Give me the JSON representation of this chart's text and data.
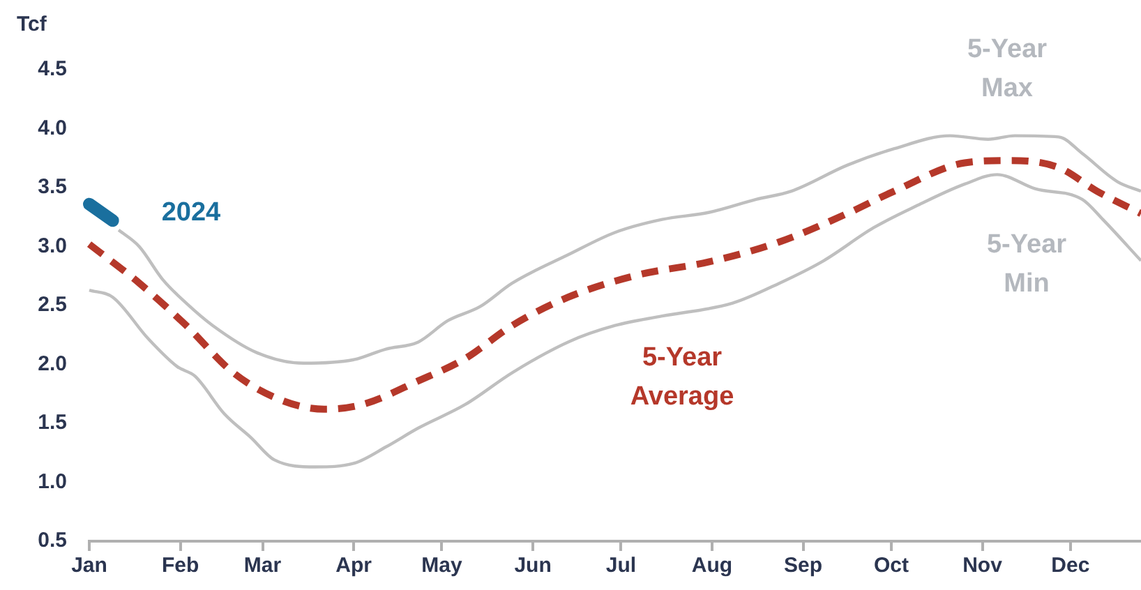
{
  "chart_data": {
    "type": "line",
    "ylabel": "Tcf",
    "xlim": [
      "--01-01",
      "--12-25"
    ],
    "ylim": [
      0.5,
      4.5
    ],
    "xticks": [
      {
        "value": "--01-01",
        "label": "Jan"
      },
      {
        "value": "--02-01",
        "label": "Feb"
      },
      {
        "value": "--03-01",
        "label": "Mar"
      },
      {
        "value": "--04-01",
        "label": "Apr"
      },
      {
        "value": "--05-01",
        "label": "May"
      },
      {
        "value": "--06-01",
        "label": "Jun"
      },
      {
        "value": "--07-01",
        "label": "Jul"
      },
      {
        "value": "--08-01",
        "label": "Aug"
      },
      {
        "value": "--09-01",
        "label": "Sep"
      },
      {
        "value": "--10-01",
        "label": "Oct"
      },
      {
        "value": "--11-01",
        "label": "Nov"
      },
      {
        "value": "--12-01",
        "label": "Dec"
      }
    ],
    "yticks": [
      0.5,
      {
        "value": 1,
        "label": "1.0"
      },
      1.5,
      {
        "value": 2,
        "label": "2.0"
      },
      2.5,
      {
        "value": 3,
        "label": "3.0"
      },
      3.5,
      {
        "value": 4,
        "label": "4.0"
      },
      4.5
    ],
    "legend": false,
    "marker": "none",
    "series": [
      {
        "name": "5-Year Max",
        "color": "#bfbfbf",
        "line_style": "solid",
        "x": [
          "--01-11",
          "--01-18",
          "--01-26",
          "--02-03",
          "--02-12",
          "--02-27",
          "--03-15",
          "--04-01",
          "--04-12",
          "--04-23",
          "--05-03",
          "--05-14",
          "--05-25",
          "--06-13",
          "--06-29",
          "--07-15",
          "--07-31",
          "--08-16",
          "--08-28",
          "--09-16",
          "--10-02",
          "--10-21",
          "--11-03",
          "--11-12",
          "--11-27",
          "--12-05",
          "--12-17",
          "--12-25"
        ],
        "values": [
          3.14,
          3.0,
          2.72,
          2.52,
          2.33,
          2.1,
          2.01,
          2.04,
          2.13,
          2.19,
          2.37,
          2.49,
          2.69,
          2.93,
          3.12,
          3.23,
          3.29,
          3.4,
          3.47,
          3.69,
          3.83,
          3.94,
          3.91,
          3.94,
          3.93,
          3.79,
          3.55,
          3.47
        ]
      },
      {
        "name": "5-Year Min",
        "color": "#bfbfbf",
        "line_style": "solid",
        "x": [
          "--01-01",
          "--01-09",
          "--01-21",
          "--01-31",
          "--02-06",
          "--02-16",
          "--02-25",
          "--03-05",
          "--03-19",
          "--04-01",
          "--04-12",
          "--04-23",
          "--05-09",
          "--05-25",
          "--06-13",
          "--06-29",
          "--07-15",
          "--08-08",
          "--08-24",
          "--09-08",
          "--09-25",
          "--10-10",
          "--10-26",
          "--11-06",
          "--11-19",
          "--12-05",
          "--12-12",
          "--12-25"
        ],
        "values": [
          2.63,
          2.57,
          2.22,
          1.98,
          1.9,
          1.58,
          1.38,
          1.19,
          1.13,
          1.16,
          1.3,
          1.46,
          1.66,
          1.93,
          2.19,
          2.33,
          2.41,
          2.52,
          2.69,
          2.88,
          3.16,
          3.35,
          3.53,
          3.61,
          3.49,
          3.4,
          3.23,
          2.88
        ]
      },
      {
        "name": "5-Year Average",
        "color": "#b5382a",
        "line_style": "dashed",
        "x": [
          "--01-01",
          "--01-18",
          "--02-03",
          "--02-19",
          "--03-07",
          "--03-22",
          "--04-04",
          "--04-23",
          "--05-09",
          "--05-25",
          "--06-13",
          "--07-07",
          "--07-31",
          "--08-24",
          "--09-16",
          "--10-02",
          "--10-26",
          "--11-11",
          "--11-27",
          "--12-10",
          "--12-25"
        ],
        "values": [
          3.02,
          2.69,
          2.33,
          1.93,
          1.7,
          1.62,
          1.66,
          1.86,
          2.05,
          2.33,
          2.57,
          2.76,
          2.87,
          3.04,
          3.28,
          3.47,
          3.71,
          3.73,
          3.67,
          3.47,
          3.28
        ]
      },
      {
        "name": "2024",
        "color": "#1a6f9e",
        "line_style": "solid",
        "x": [
          "--01-01",
          "--01-09"
        ],
        "values": [
          3.36,
          3.22
        ]
      }
    ]
  }
}
